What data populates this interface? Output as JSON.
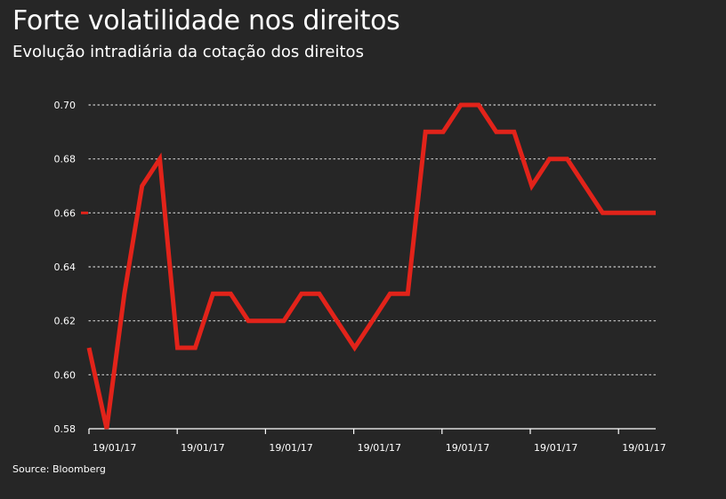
{
  "title": "Forte volatilidade nos direitos",
  "subtitle": "Evolução intradiária da cotação dos direitos",
  "source": "Source: Bloomberg",
  "colors": {
    "background": "#262626",
    "line": "#e2231a",
    "grid": "#cfcfcf",
    "text": "#ffffff"
  },
  "chart_data": {
    "type": "line",
    "title": "Forte volatilidade nos direitos",
    "subtitle": "Evolução intradiária da cotação dos direitos",
    "xlabel": "",
    "ylabel": "",
    "ylim": [
      0.58,
      0.7
    ],
    "yticks": [
      "0.58",
      "0.60",
      "0.62",
      "0.64",
      "0.66",
      "0.68",
      "0.70"
    ],
    "xticks": [
      "19/01/17",
      "19/01/17",
      "19/01/17",
      "19/01/17",
      "19/01/17",
      "19/01/17",
      "19/01/17"
    ],
    "grid": true,
    "legend": "none",
    "highlight_tick": "0.66",
    "series": [
      {
        "values": [
          0.61,
          0.58,
          0.63,
          0.67,
          0.68,
          0.61,
          0.61,
          0.63,
          0.63,
          0.62,
          0.62,
          0.62,
          0.63,
          0.63,
          0.62,
          0.61,
          0.62,
          0.63,
          0.63,
          0.69,
          0.69,
          0.7,
          0.7,
          0.69,
          0.69,
          0.67,
          0.68,
          0.68,
          0.67,
          0.66,
          0.66,
          0.66,
          0.66
        ]
      }
    ]
  }
}
